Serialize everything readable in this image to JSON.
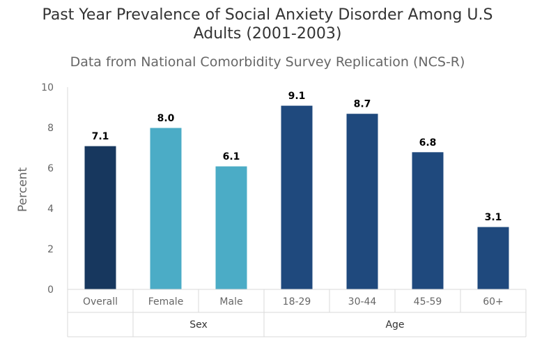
{
  "chart_data": {
    "type": "bar",
    "title_line1": "Past Year Prevalence of Social Anxiety Disorder Among U.S",
    "title_line2": "Adults (2001-2003)",
    "subtitle": "Data from National Comorbidity Survey Replication (NCS-R)",
    "ylabel": "Percent",
    "ylim": [
      0,
      10
    ],
    "yticks": [
      "0",
      "2",
      "4",
      "6",
      "8",
      "10"
    ],
    "categories": [
      "Overall",
      "Female",
      "Male",
      "18-29",
      "30-44",
      "45-59",
      "60+"
    ],
    "values": [
      7.1,
      8.0,
      6.1,
      9.1,
      8.7,
      6.8,
      3.1
    ],
    "value_labels": [
      "7.1",
      "8.0",
      "6.1",
      "9.1",
      "8.7",
      "6.8",
      "3.1"
    ],
    "groups": [
      {
        "label": "",
        "start": 0,
        "end": 0
      },
      {
        "label": "Sex",
        "start": 1,
        "end": 2
      },
      {
        "label": "Age",
        "start": 3,
        "end": 6
      }
    ],
    "colors": [
      "#17375e",
      "#4bacc6",
      "#4bacc6",
      "#1f497d",
      "#1f497d",
      "#1f497d",
      "#1f497d"
    ],
    "grid": false
  }
}
